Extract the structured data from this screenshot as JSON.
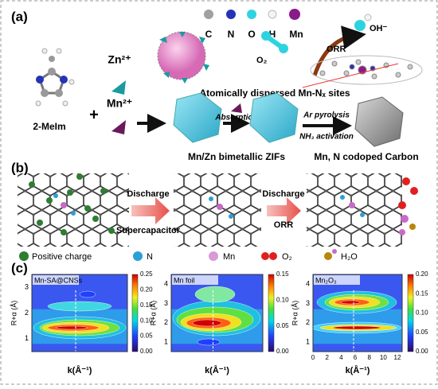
{
  "panel_a": {
    "label": "(a)",
    "atom_legend": [
      "C",
      "N",
      "O",
      "H",
      "Mn"
    ],
    "o2": "O₂",
    "oh": "OH⁻",
    "orr": "ORR",
    "sites": "Atomically dispersed Mn-Nₓ sites",
    "zn": "Zn²⁺",
    "mn": "Mn²⁺",
    "ligand": "2-MeIm",
    "plus": "+",
    "absorption": "Absorption",
    "pyrolysis": "Ar pyrolysis",
    "activation": "NH₃ activation",
    "zif": "Mn/Zn bimetallic ZIFs",
    "carbon": "Mn, N codoped Carbon"
  },
  "panel_b": {
    "label": "(b)",
    "discharge_1": "Discharge",
    "supercapacitor": "Supercapacitor",
    "discharge_2": "Discharge",
    "orr": "ORR",
    "legend": [
      "Positive charge",
      "N",
      "Mn",
      "O₂",
      "H₂O"
    ]
  },
  "panel_c": {
    "label": "(c)",
    "plots": [
      {
        "name": "Mn-SA@CNSs",
        "ylabel": "R+α (Å)",
        "xlabel": "k(Å⁻¹)",
        "yticks": [
          "1",
          "2",
          "3"
        ],
        "colorbar": [
          "0.00",
          "0.05",
          "0.10",
          "0.15",
          "0.20",
          "0.25"
        ]
      },
      {
        "name": "Mn foil",
        "ylabel": "R+α (Å)",
        "xlabel": "k(Å⁻¹)",
        "yticks": [
          "1",
          "2",
          "3",
          "4"
        ],
        "colorbar": [
          "0.00",
          "0.05",
          "0.10",
          "0.15"
        ]
      },
      {
        "name": "Mn₂O₃",
        "ylabel": "R+α (Å)",
        "xlabel": "k(Å⁻¹)",
        "yticks": [
          "1",
          "2",
          "3",
          "4"
        ],
        "xticks": [
          "0",
          "2",
          "4",
          "6",
          "8",
          "10",
          "12"
        ],
        "colorbar": [
          "0.00",
          "0.05",
          "0.10",
          "0.15",
          "0.20"
        ]
      }
    ]
  }
}
